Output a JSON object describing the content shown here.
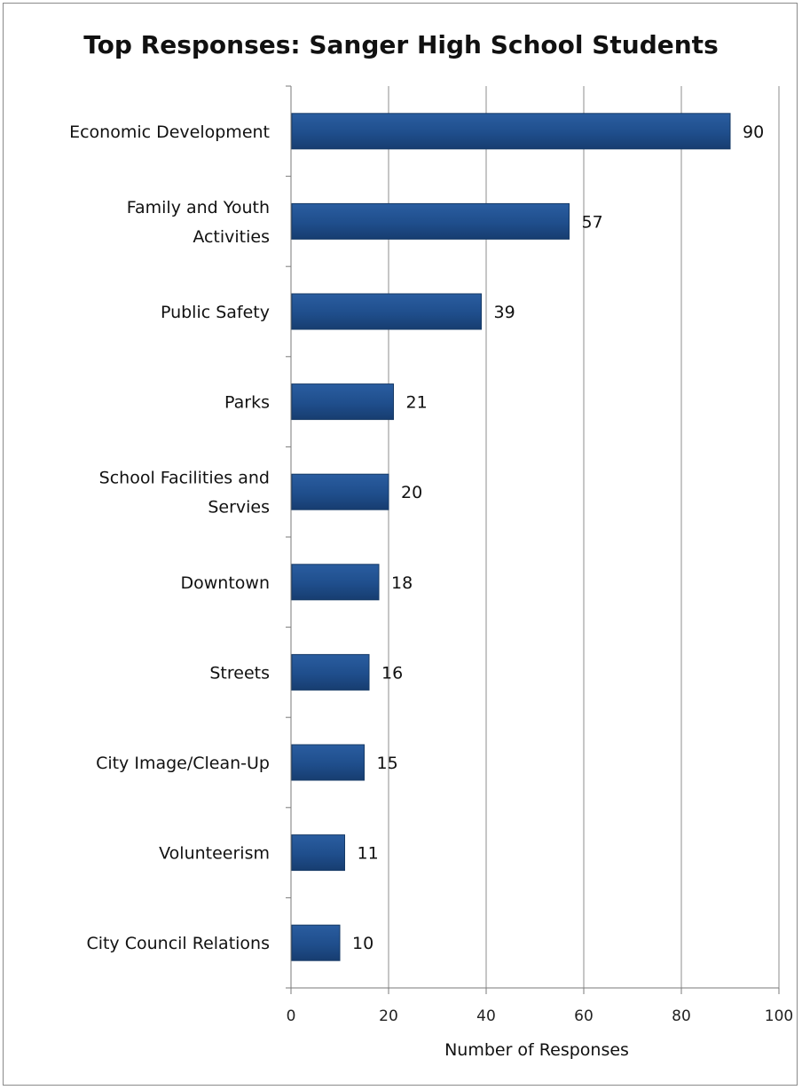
{
  "chart_data": {
    "type": "bar",
    "orientation": "horizontal",
    "title": "Top Responses: Sanger High School Students",
    "xlabel": "Number of Responses",
    "ylabel": "",
    "xlim": [
      0,
      100
    ],
    "xticks": [
      0,
      20,
      40,
      60,
      80,
      100
    ],
    "grid": true,
    "legend": "none",
    "bar_color": "#1f4e8c",
    "categories": [
      [
        "Economic Development"
      ],
      [
        "Family and Youth",
        "Activities"
      ],
      [
        "Public Safety"
      ],
      [
        "Parks"
      ],
      [
        "School Facilities and",
        "Servies"
      ],
      [
        "Downtown"
      ],
      [
        "Streets"
      ],
      [
        "City Image/Clean-Up"
      ],
      [
        "Volunteerism"
      ],
      [
        "City Council Relations"
      ]
    ],
    "values": [
      90,
      57,
      39,
      21,
      20,
      18,
      16,
      15,
      11,
      10
    ]
  }
}
